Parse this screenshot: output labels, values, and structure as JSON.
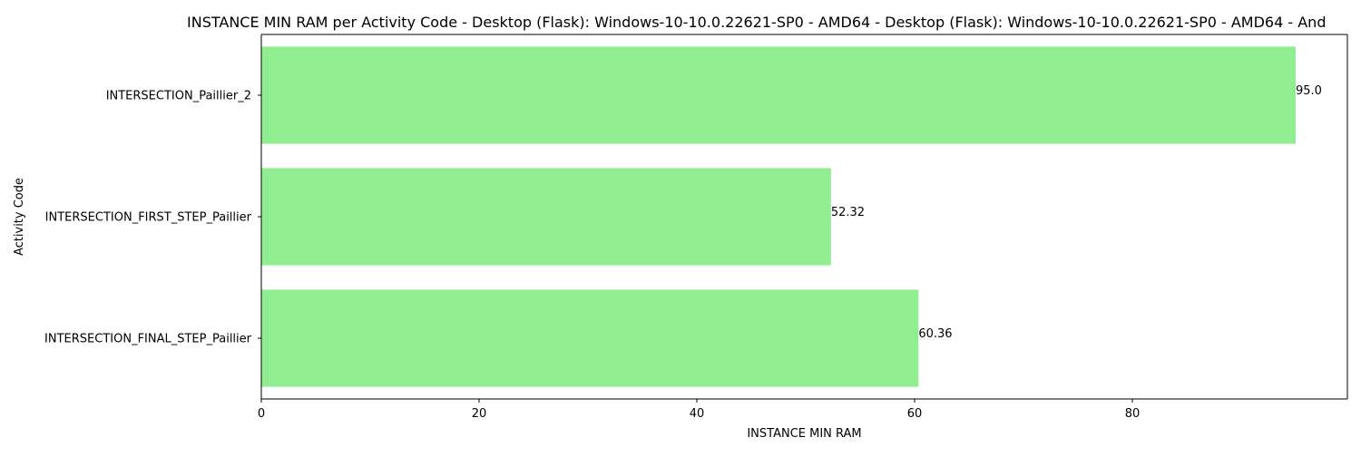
{
  "chart_data": {
    "type": "bar",
    "orientation": "horizontal",
    "title": "INSTANCE MIN RAM per Activity Code - Desktop (Flask): Windows-10-10.0.22621-SP0 - AMD64 - Desktop (Flask): Windows-10-10.0.22621-SP0 - AMD64 - And",
    "xlabel": "INSTANCE MIN RAM",
    "ylabel": "Activity Code",
    "categories": [
      "INTERSECTION_Paillier_2",
      "INTERSECTION_FIRST_STEP_Paillier",
      "INTERSECTION_FINAL_STEP_Paillier"
    ],
    "values": [
      95.0,
      52.32,
      60.36
    ],
    "value_labels": [
      "95.0",
      "52.32",
      "60.36"
    ],
    "xlim": [
      0,
      99.75
    ],
    "xticks": [
      0,
      20,
      40,
      60,
      80
    ],
    "xtick_labels": [
      "0",
      "20",
      "40",
      "60",
      "80"
    ],
    "grid": false,
    "bar_color": "#90ee90"
  }
}
